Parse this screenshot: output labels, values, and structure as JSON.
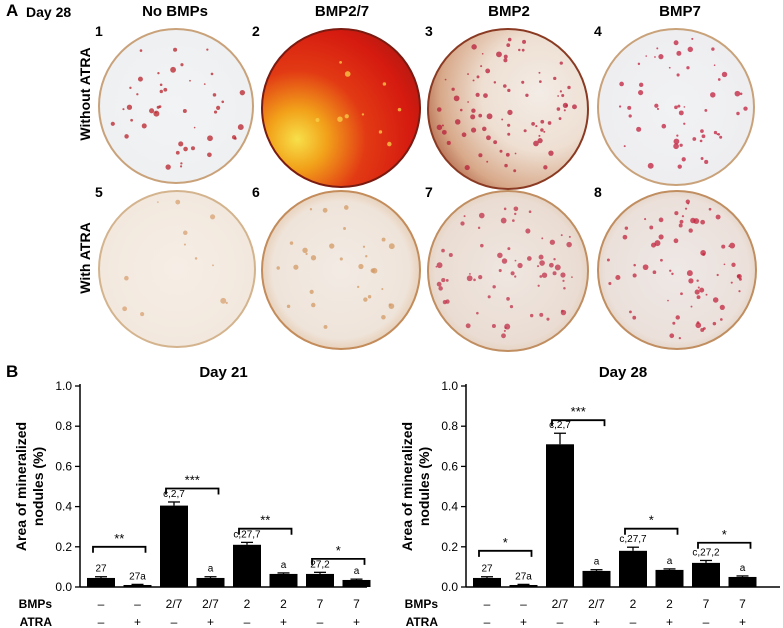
{
  "panelA": {
    "letter": "A",
    "day_label": "Day 28",
    "column_headers": [
      "No BMPs",
      "BMP2/7",
      "BMP2",
      "BMP7"
    ],
    "row_labels": [
      "Without ATRA",
      "With ATRA"
    ],
    "well_numbers": [
      "1",
      "2",
      "3",
      "4",
      "5",
      "6",
      "7",
      "8"
    ]
  },
  "panelB": {
    "letter": "B"
  },
  "chart_data": [
    {
      "type": "bar",
      "title": "Day 21",
      "ylabel": "Area of mineralized nodules (%)",
      "ylim": [
        0,
        1.0
      ],
      "yticks": [
        "0.0",
        "0.2",
        "0.4",
        "0.6",
        "0.8",
        "1.0"
      ],
      "row_labels": [
        "BMPs",
        "ATRA"
      ],
      "bmps": [
        "–",
        "–",
        "2/7",
        "2/7",
        "2",
        "2",
        "7",
        "7"
      ],
      "atra": [
        "–",
        "+",
        "–",
        "+",
        "–",
        "+",
        "–",
        "+"
      ],
      "values": [
        0.045,
        0.01,
        0.405,
        0.045,
        0.21,
        0.065,
        0.065,
        0.035
      ],
      "errors": [
        0.006,
        0.003,
        0.018,
        0.006,
        0.012,
        0.005,
        0.008,
        0.004
      ],
      "bar_labels": [
        "27",
        "27a",
        "c,2,7",
        "a",
        "c,27,7",
        "a",
        "27,2",
        "a"
      ],
      "significance": [
        {
          "pair": [
            0,
            1
          ],
          "label": "**",
          "y": 0.2
        },
        {
          "pair": [
            2,
            3
          ],
          "label": "***",
          "y": 0.49
        },
        {
          "pair": [
            4,
            5
          ],
          "label": "**",
          "y": 0.29
        },
        {
          "pair": [
            6,
            7
          ],
          "label": "*",
          "y": 0.14
        }
      ]
    },
    {
      "type": "bar",
      "title": "Day 28",
      "ylabel": "Area of mineralized nodules (%)",
      "ylim": [
        0,
        1.0
      ],
      "yticks": [
        "0.0",
        "0.2",
        "0.4",
        "0.6",
        "0.8",
        "1.0"
      ],
      "row_labels": [
        "BMPs",
        "ATRA"
      ],
      "bmps": [
        "–",
        "–",
        "2/7",
        "2/7",
        "2",
        "2",
        "7",
        "7"
      ],
      "atra": [
        "–",
        "+",
        "–",
        "+",
        "–",
        "+",
        "–",
        "+"
      ],
      "values": [
        0.045,
        0.01,
        0.71,
        0.08,
        0.18,
        0.085,
        0.12,
        0.05
      ],
      "errors": [
        0.006,
        0.003,
        0.055,
        0.006,
        0.018,
        0.005,
        0.012,
        0.005
      ],
      "bar_labels": [
        "27",
        "27a",
        "c,2,7",
        "a",
        "c,27,7",
        "a",
        "c,27,2",
        "a"
      ],
      "significance": [
        {
          "pair": [
            0,
            1
          ],
          "label": "*",
          "y": 0.18
        },
        {
          "pair": [
            2,
            3
          ],
          "label": "***",
          "y": 0.83
        },
        {
          "pair": [
            4,
            5
          ],
          "label": "*",
          "y": 0.29
        },
        {
          "pair": [
            6,
            7
          ],
          "label": "*",
          "y": 0.22
        }
      ]
    }
  ]
}
